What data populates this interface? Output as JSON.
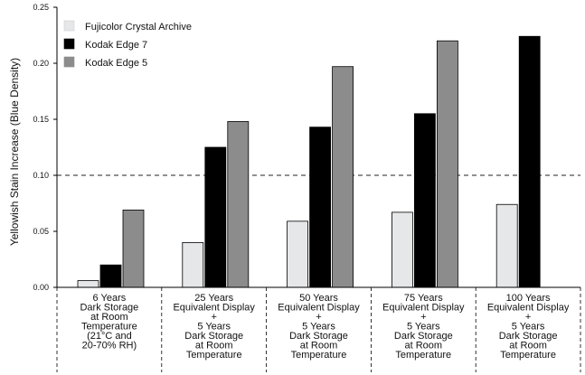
{
  "chart_data": {
    "type": "bar",
    "ylabel": "Yellowish Stain Increase (Blue Density)",
    "xlabel": "",
    "ylim": [
      0,
      0.25
    ],
    "yticks": [
      "0.00",
      "0.05",
      "0.10",
      "0.15",
      "0.20",
      "0.25"
    ],
    "reference_line": 0.1,
    "legend_position": "top-left",
    "categories": [
      [
        "6 Years",
        "Dark Storage",
        "at Room",
        "Temperature",
        "(21°C and",
        "20-70% RH)"
      ],
      [
        "25 Years",
        "Equivalent Display",
        "+",
        "5 Years",
        "Dark Storage",
        "at Room",
        "Temperature"
      ],
      [
        "50 Years",
        "Equivalent Display",
        "+",
        "5 Years",
        "Dark Storage",
        "at Room",
        "Temperature"
      ],
      [
        "75 Years",
        "Equivalent Display",
        "+",
        "5 Years",
        "Dark Storage",
        "at Room",
        "Temperature"
      ],
      [
        "100 Years",
        "Equivalent Display",
        "+",
        "5 Years",
        "Dark Storage",
        "at Room",
        "Temperature"
      ]
    ],
    "series": [
      {
        "name": "Fujicolor Crystal Archive",
        "color": "#e6e7e8",
        "values": [
          0.006,
          0.04,
          0.059,
          0.067,
          0.074
        ]
      },
      {
        "name": "Kodak Edge 7",
        "color": "#000000",
        "values": [
          0.02,
          0.125,
          0.143,
          0.155,
          0.224
        ]
      },
      {
        "name": "Kodak Edge 5",
        "color": "#8c8c8c",
        "values": [
          0.069,
          0.148,
          0.197,
          0.22,
          null
        ]
      }
    ]
  }
}
